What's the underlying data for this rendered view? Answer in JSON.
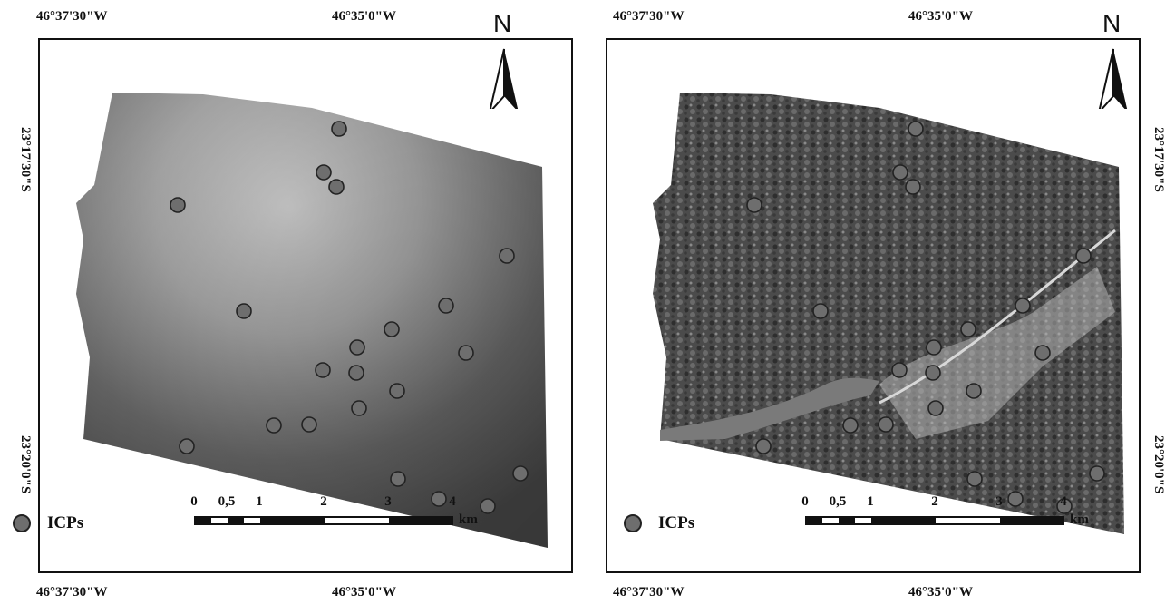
{
  "coords": {
    "top_left": "46°37'30\"W",
    "top_mid": "46°35'0\"W",
    "bottom_left": "46°37'30\"W",
    "bottom_mid": "46°35'0\"W",
    "lat_upper": "23°17'30\"S",
    "lat_lower": "23°20'0\"S"
  },
  "legend": {
    "label": "ICPs"
  },
  "scalebar": {
    "ticks": [
      "0",
      "0,5",
      "1",
      "2",
      "3",
      "4"
    ],
    "unit": "km"
  },
  "north": {
    "label": "N"
  },
  "colors": {
    "icp_fill": "#6e6e6e",
    "icp_stroke": "#222222"
  },
  "panels": [
    {
      "id": "left",
      "style": "elevation-model"
    },
    {
      "id": "right",
      "style": "orthophoto"
    }
  ]
}
